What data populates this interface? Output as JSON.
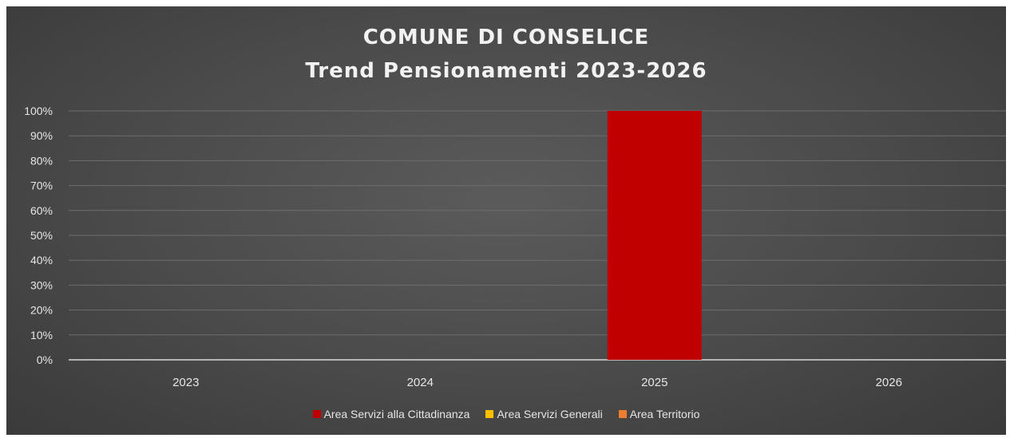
{
  "chart_data": {
    "type": "bar",
    "title": "COMUNE DI CONSELICE",
    "subtitle": "Trend Pensionamenti 2023-2026",
    "categories": [
      "2023",
      "2024",
      "2025",
      "2026"
    ],
    "series": [
      {
        "name": "Area Servizi alla Cittadinanza",
        "color": "#c00000",
        "values": [
          0,
          0,
          100,
          0
        ]
      },
      {
        "name": "Area Servizi Generali",
        "color": "#ffc000",
        "values": [
          0,
          0,
          0,
          0
        ]
      },
      {
        "name": "Area Territorio",
        "color": "#ed7d31",
        "values": [
          0,
          0,
          0,
          0
        ]
      }
    ],
    "ylim": [
      0,
      100
    ],
    "yticks": [
      "0%",
      "10%",
      "20%",
      "30%",
      "40%",
      "50%",
      "60%",
      "70%",
      "80%",
      "90%",
      "100%"
    ],
    "grid": true,
    "legend": "bottom"
  }
}
